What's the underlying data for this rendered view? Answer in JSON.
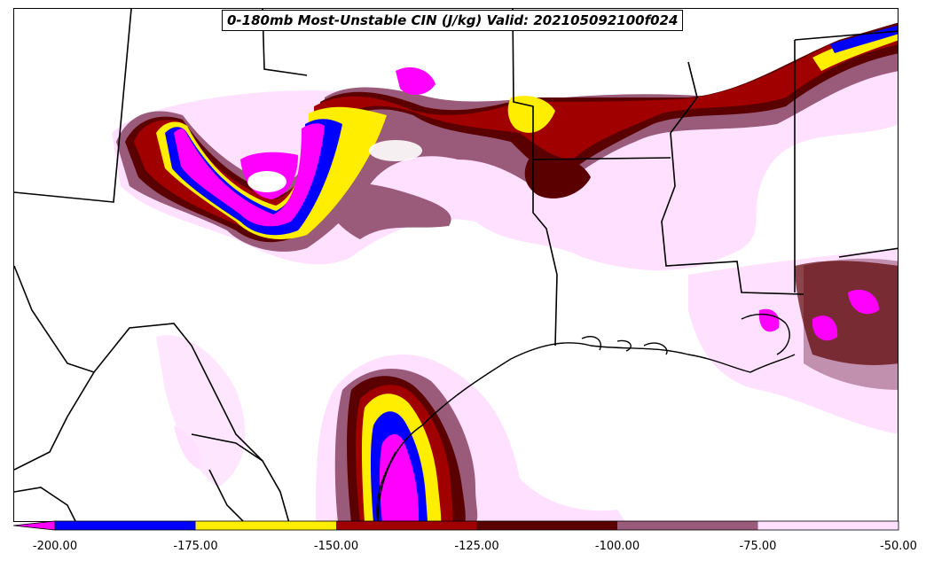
{
  "title": "0-180mb Most-Unstable CIN (J/kg) Valid: 202105092100f024",
  "colorbar": {
    "ticks": [
      "-200.00",
      "-175.00",
      "-150.00",
      "-125.00",
      "-100.00",
      "-75.00",
      "-50.00"
    ],
    "colors": [
      "#ff00ff",
      "#0000ff",
      "#ffee00",
      "#a00000",
      "#5a0000",
      "#9a5a7a",
      "#ffe0ff"
    ],
    "extend": "min"
  },
  "chart_data": {
    "type": "heatmap",
    "title": "0-180mb Most-Unstable CIN (J/kg) Valid: 202105092100f024",
    "variable": "CIN",
    "units": "J/kg",
    "levels": [
      -200,
      -175,
      -150,
      -125,
      -100,
      -75,
      -50
    ],
    "valid": "202105092100f024"
  }
}
